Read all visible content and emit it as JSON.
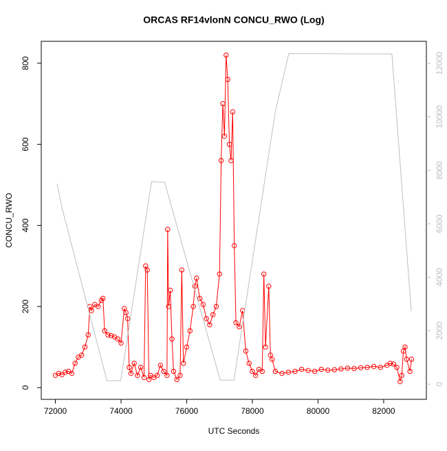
{
  "chart_data": {
    "type": "line",
    "title": "ORCAS RF14vlonN CONCU_RWO (Log)",
    "xlabel": "UTC Seconds",
    "ylabel": "CONCU_RWO",
    "xlim": [
      71570,
      83300
    ],
    "xticks": [
      72000,
      74000,
      76000,
      78000,
      80000,
      82000
    ],
    "ylim": [
      -29,
      854
    ],
    "yticks": [
      0,
      200,
      400,
      600,
      800
    ],
    "y2lim": [
      -567,
      12824
    ],
    "y2ticks": [
      0,
      2000,
      4000,
      6000,
      8000,
      10000,
      12000
    ],
    "series": [
      {
        "color": "#ff0000",
        "markers": true,
        "x": [
          72000,
          72100,
          72200,
          72300,
          72400,
          72500,
          72600,
          72700,
          72800,
          72900,
          73000,
          73050,
          73100,
          73200,
          73300,
          73400,
          73450,
          73500,
          73600,
          73700,
          73800,
          73900,
          74000,
          74100,
          74150,
          74200,
          74250,
          74300,
          74400,
          74500,
          74600,
          74700,
          74750,
          74800,
          74850,
          74900,
          75000,
          75100,
          75200,
          75300,
          75400,
          75420,
          75450,
          75500,
          75550,
          75600,
          75700,
          75800,
          75850,
          75900,
          76000,
          76100,
          76200,
          76250,
          76300,
          76400,
          76500,
          76600,
          76700,
          76800,
          76900,
          77000,
          77050,
          77100,
          77150,
          77200,
          77250,
          77300,
          77350,
          77400,
          77450,
          77500,
          77600,
          77700,
          77800,
          77900,
          78000,
          78100,
          78200,
          78300,
          78350,
          78400,
          78500,
          78550,
          78600,
          78700,
          78900,
          79100,
          79300,
          79500,
          79700,
          79900,
          80100,
          80300,
          80500,
          80700,
          80900,
          81100,
          81300,
          81500,
          81700,
          81900,
          82100,
          82200,
          82300,
          82400,
          82500,
          82550,
          82600,
          82650,
          82700,
          82800,
          82850
        ],
        "values": [
          30,
          35,
          32,
          38,
          40,
          35,
          60,
          75,
          80,
          100,
          130,
          200,
          190,
          205,
          200,
          215,
          220,
          140,
          130,
          128,
          125,
          120,
          110,
          195,
          185,
          170,
          50,
          35,
          60,
          30,
          50,
          25,
          300,
          290,
          20,
          30,
          25,
          30,
          55,
          40,
          30,
          390,
          200,
          240,
          120,
          40,
          20,
          30,
          290,
          60,
          100,
          140,
          200,
          250,
          270,
          220,
          205,
          170,
          155,
          180,
          200,
          280,
          560,
          700,
          620,
          820,
          760,
          600,
          560,
          680,
          350,
          160,
          150,
          190,
          90,
          60,
          40,
          30,
          45,
          40,
          280,
          100,
          250,
          80,
          70,
          40,
          35,
          38,
          40,
          45,
          42,
          40,
          45,
          43,
          44,
          46,
          48,
          47,
          49,
          50,
          52,
          50,
          55,
          60,
          58,
          50,
          15,
          30,
          90,
          100,
          70,
          40,
          70
        ]
      },
      {
        "color": "#bebebe",
        "axis": "y2",
        "markers": false,
        "x": [
          72050,
          72200,
          73570,
          73990,
          74930,
          75330,
          77020,
          77440,
          78700,
          79110,
          82250,
          82840
        ],
        "values": [
          7500,
          6600,
          130,
          130,
          7580,
          7550,
          150,
          150,
          10200,
          12370,
          12350,
          2730
        ]
      }
    ]
  }
}
